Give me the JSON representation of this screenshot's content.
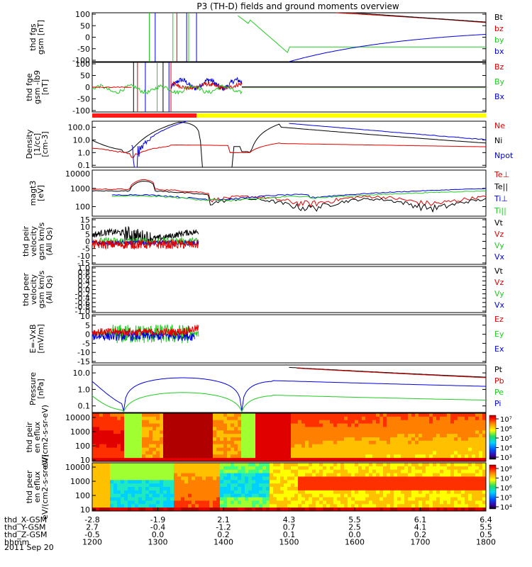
{
  "title": "P3 (TH-D) fields and ground moments overview",
  "date_label": "2011 Sep 20",
  "colors": {
    "black": "#000000",
    "red": "#e00000",
    "green": "#22cc22",
    "blue": "#0000dd",
    "bar_red": "#ff1a1a",
    "bar_yellow": "#ffff00"
  },
  "time_axis": {
    "rows": [
      {
        "label": "thd_X-GSM",
        "ticks": [
          "-2.8",
          "-1.9",
          "2.1",
          "4.3",
          "5.5",
          "6.1",
          "6.4"
        ]
      },
      {
        "label": "thd_Y-GSM",
        "ticks": [
          "2.7",
          "-0.4",
          "-1.2",
          "0.7",
          "2.5",
          "4.1",
          "5.5"
        ]
      },
      {
        "label": "thd_Z-GSM",
        "ticks": [
          "-0.5",
          "0.0",
          "0.2",
          "0.1",
          "0.0",
          "0.2",
          "0.5"
        ]
      },
      {
        "label": "hhmm",
        "ticks": [
          "1200",
          "1300",
          "1400",
          "1500",
          "1600",
          "1700",
          "1800"
        ]
      }
    ],
    "range": [
      "1200",
      "1800"
    ]
  },
  "chart_data": [
    {
      "type": "line",
      "ylabel": "thd fgs gsm [nT]",
      "yticks": [
        "100",
        "50",
        "0",
        "-50",
        "-100"
      ],
      "ylim": [
        -100,
        100
      ],
      "legend": [
        {
          "label": "Bt",
          "color": "#000000"
        },
        {
          "label": "bz",
          "color": "#e00000"
        },
        {
          "label": "by",
          "color": "#22cc22"
        },
        {
          "label": "bx",
          "color": "#0000dd"
        }
      ]
    },
    {
      "type": "line",
      "ylabel": "thd fge gsm -lb9 [nT]",
      "yticks": [
        "100",
        "50",
        "0",
        "-50",
        "-100"
      ],
      "ylim": [
        -120,
        120
      ],
      "legend": [
        {
          "label": "Bz",
          "color": "#e00000"
        },
        {
          "label": "By",
          "color": "#22cc22"
        },
        {
          "label": "Bx",
          "color": "#0000dd"
        }
      ]
    },
    {
      "type": "line",
      "ylabel": "Density [1/cc] [cm-3]",
      "yticks": [
        "100.0",
        "10.0",
        "1.0",
        "0.1"
      ],
      "yscale": "log",
      "ylim": [
        0.07,
        300
      ],
      "legend": [
        {
          "label": "Ne",
          "color": "#e00000"
        },
        {
          "label": "Ni",
          "color": "#000000"
        },
        {
          "label": "Npot",
          "color": "#0000dd"
        }
      ]
    },
    {
      "type": "line",
      "ylabel": "magt3 [eV]",
      "yticks": [
        "1000",
        "100"
      ],
      "yextra": "10000",
      "yscale": "log",
      "ylim": [
        30,
        10000
      ],
      "legend": [
        {
          "label": "Te⊥",
          "color": "#e00000"
        },
        {
          "label": "Te||",
          "color": "#000000"
        },
        {
          "label": "Ti⊥",
          "color": "#0000dd"
        },
        {
          "label": "Ti||",
          "color": "#22cc22"
        }
      ]
    },
    {
      "type": "line",
      "ylabel": "thd peir velocity gsm km/s (All Qs)",
      "yticks": [
        "15",
        "10",
        "5",
        "0",
        "-5",
        "-10",
        "-15"
      ],
      "ylim": [
        -15,
        15
      ],
      "legend": [
        {
          "label": "Vt",
          "color": "#000000"
        },
        {
          "label": "Vz",
          "color": "#e00000"
        },
        {
          "label": "Vy",
          "color": "#22cc22"
        },
        {
          "label": "Vx",
          "color": "#0000dd"
        }
      ]
    },
    {
      "type": "line",
      "ylabel": "thd peer velocity gsm km/s (All Qs)",
      "yticks": [
        "1.0",
        "0.8",
        "0.6",
        "0.4",
        "0.2",
        "0.0",
        "-0.2",
        "-0.4",
        "-0.6",
        "-0.8",
        "-1.0"
      ],
      "ylim": [
        -1,
        1
      ],
      "legend": [
        {
          "label": "Vt",
          "color": "#000000"
        },
        {
          "label": "Vz",
          "color": "#e00000"
        },
        {
          "label": "Vy",
          "color": "#22cc22"
        },
        {
          "label": "Vx",
          "color": "#0000dd"
        }
      ]
    },
    {
      "type": "line",
      "ylabel": "E=-VxB [mV/m]",
      "yticks": [
        "10",
        "5",
        "0",
        "-5",
        "-10",
        "-15"
      ],
      "ylim": [
        -15,
        10
      ],
      "legend": [
        {
          "label": "Ez",
          "color": "#e00000"
        },
        {
          "label": "Ey",
          "color": "#22cc22"
        },
        {
          "label": "Ex",
          "color": "#0000dd"
        }
      ]
    },
    {
      "type": "line",
      "ylabel": "Pressure [nPa]",
      "yticks": [
        "10.0",
        "1.0",
        "0.1"
      ],
      "yscale": "log",
      "ylim": [
        0.04,
        30
      ],
      "legend": [
        {
          "label": "Pt",
          "color": "#000000"
        },
        {
          "label": "Pb",
          "color": "#e00000"
        },
        {
          "label": "Pe",
          "color": "#22cc22"
        },
        {
          "label": "Pi",
          "color": "#0000dd"
        }
      ]
    },
    {
      "type": "heatmap",
      "ylabel": "thd peir en eflux eV/(cm2-s-sr-eV)",
      "yticks": [
        "10000",
        "1000",
        "100",
        "10"
      ],
      "yscale": "log",
      "ylim": [
        8,
        20000
      ],
      "colorbar": {
        "ticks": [
          "10⁷",
          "10⁶",
          "10⁵",
          "10⁴",
          "10³"
        ],
        "range": [
          1000,
          10000000
        ]
      }
    },
    {
      "type": "heatmap",
      "ylabel": "thd peer en eflux eV/(cm2-s-sr-eV)",
      "yticks": [
        "10000",
        "1000",
        "100",
        "10"
      ],
      "yscale": "log",
      "ylim": [
        8,
        20000
      ],
      "colorbar": {
        "ticks": [
          "10⁸",
          "10⁷",
          "10⁶",
          "10⁵",
          "10⁴"
        ],
        "range": [
          10000,
          100000000
        ]
      }
    }
  ]
}
